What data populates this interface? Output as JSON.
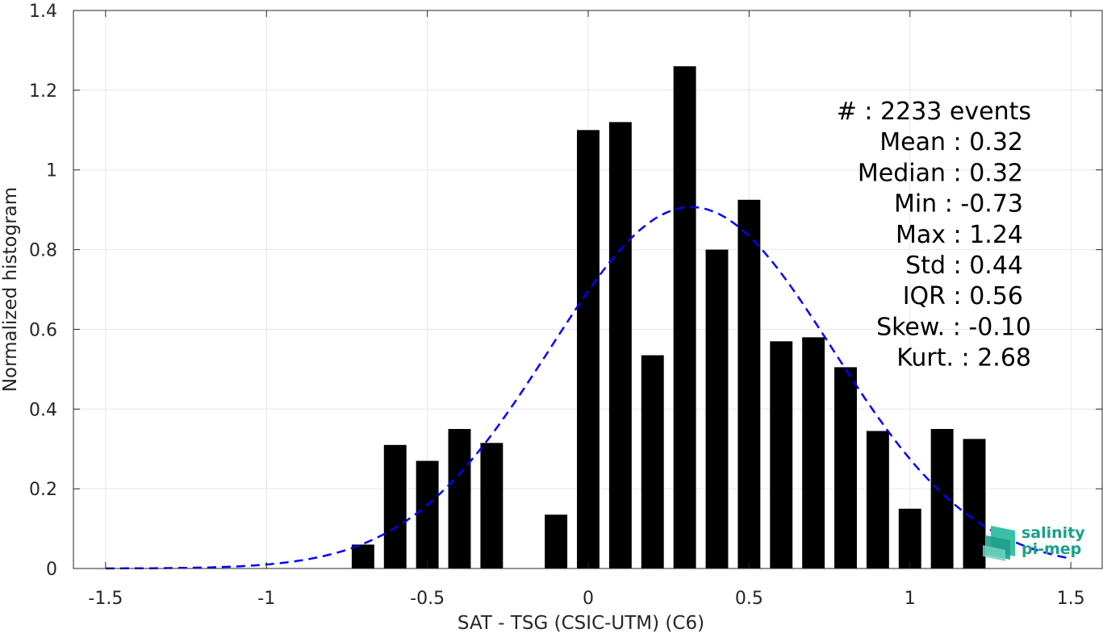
{
  "chart_data": {
    "type": "bar",
    "xlabel": "SAT - TSG (CSIC-UTM) (C6)",
    "ylabel": "Normalized histogram",
    "xlim": [
      -1.6,
      1.6
    ],
    "ylim": [
      0,
      1.4
    ],
    "grid": true,
    "x_ticks": [
      -1.5,
      -1,
      -0.5,
      0,
      0.5,
      1,
      1.5
    ],
    "x_tick_labels": [
      "-1.5",
      "-1",
      "-0.5",
      "0",
      "0.5",
      "1",
      "1.5"
    ],
    "y_ticks": [
      0,
      0.2,
      0.4,
      0.6,
      0.8,
      1,
      1.2,
      1.4
    ],
    "y_tick_labels": [
      "0",
      "0.2",
      "0.4",
      "0.6",
      "0.8",
      "1",
      "1.2",
      "1.4"
    ],
    "bar_width": 0.07,
    "bar_color": "#000000",
    "bars": [
      {
        "x": -0.7,
        "value": 0.06
      },
      {
        "x": -0.6,
        "value": 0.31
      },
      {
        "x": -0.5,
        "value": 0.27
      },
      {
        "x": -0.4,
        "value": 0.35
      },
      {
        "x": -0.3,
        "value": 0.315
      },
      {
        "x": -0.1,
        "value": 0.135
      },
      {
        "x": 0.0,
        "value": 1.1
      },
      {
        "x": 0.1,
        "value": 1.12
      },
      {
        "x": 0.2,
        "value": 0.535
      },
      {
        "x": 0.3,
        "value": 1.26
      },
      {
        "x": 0.4,
        "value": 0.8
      },
      {
        "x": 0.5,
        "value": 0.925
      },
      {
        "x": 0.6,
        "value": 0.57
      },
      {
        "x": 0.7,
        "value": 0.58
      },
      {
        "x": 0.8,
        "value": 0.505
      },
      {
        "x": 0.9,
        "value": 0.345
      },
      {
        "x": 1.0,
        "value": 0.15
      },
      {
        "x": 1.1,
        "value": 0.35
      },
      {
        "x": 1.2,
        "value": 0.325
      }
    ],
    "fit_curve": {
      "style": "dashed",
      "color": "#0000ff",
      "mean": 0.32,
      "std": 0.44,
      "x_range": [
        -1.5,
        1.5
      ]
    },
    "stats": [
      "#  : 2233 events",
      "Mean : 0.32",
      "Median : 0.32",
      "Min : -0.73",
      "Max : 1.24",
      "Std : 0.44",
      "IQR : 0.56",
      "Skew. : -0.10",
      "Kurt. : 2.68"
    ]
  },
  "logo": {
    "line1": "salinity",
    "line2": "pi-mep",
    "color": "#1aa08a"
  }
}
